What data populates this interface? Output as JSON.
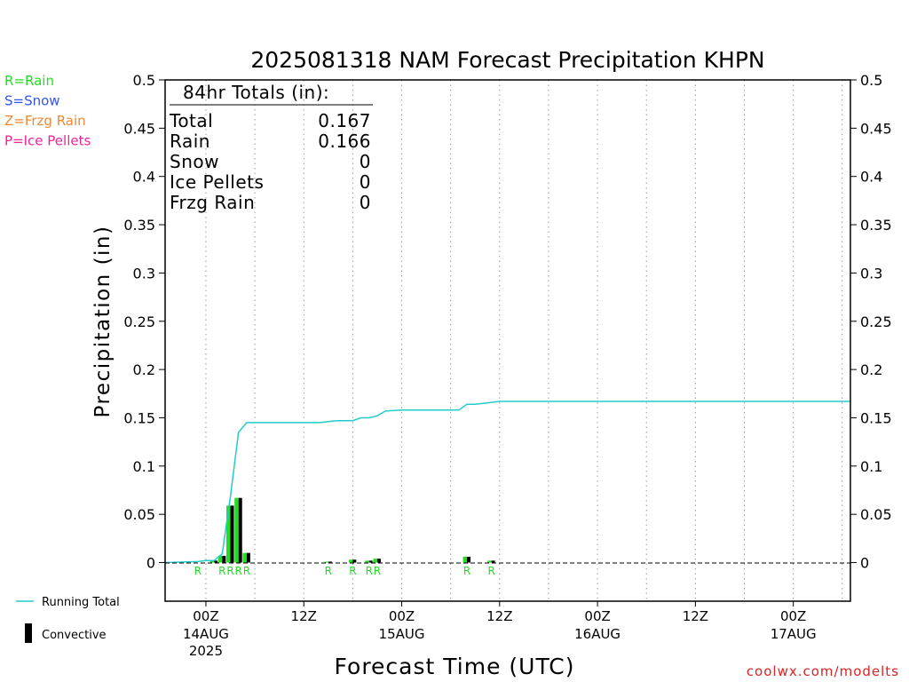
{
  "chart_data": {
    "type": "bar",
    "title": "2025081318 NAM Forecast Precipitation KHPN",
    "xlabel": "Forecast Time (UTC)",
    "ylabel": "Precipitation (in)",
    "ylim": [
      -0.04,
      0.5
    ],
    "xlim_hours_from_14aug00z": [
      -5,
      79
    ],
    "yticks": [
      "0",
      "0.05",
      "0.1",
      "0.15",
      "0.2",
      "0.25",
      "0.3",
      "0.35",
      "0.4",
      "0.45",
      "0.5"
    ],
    "xticks": [
      {
        "label": "00Z",
        "sub": "14AUG",
        "sub2": "2025",
        "hour": 0
      },
      {
        "label": "12Z",
        "sub": "",
        "sub2": "",
        "hour": 12
      },
      {
        "label": "00Z",
        "sub": "15AUG",
        "sub2": "",
        "hour": 24
      },
      {
        "label": "12Z",
        "sub": "",
        "sub2": "",
        "hour": 36
      },
      {
        "label": "00Z",
        "sub": "16AUG",
        "sub2": "",
        "hour": 48
      },
      {
        "label": "12Z",
        "sub": "",
        "sub2": "",
        "hour": 60
      },
      {
        "label": "00Z",
        "sub": "17AUG",
        "sub2": "",
        "hour": 72
      }
    ],
    "grid": "vertical dotted every 6 hours",
    "bars": [
      {
        "hour": 1,
        "value": 0.002
      },
      {
        "hour": 2,
        "value": 0.007
      },
      {
        "hour": 3,
        "value": 0.059
      },
      {
        "hour": 4,
        "value": 0.067
      },
      {
        "hour": 5,
        "value": 0.01
      },
      {
        "hour": 15,
        "value": 0.001
      },
      {
        "hour": 18,
        "value": 0.003
      },
      {
        "hour": 20,
        "value": 0.002
      },
      {
        "hour": 21,
        "value": 0.004
      },
      {
        "hour": 32,
        "value": 0.006
      },
      {
        "hour": 35,
        "value": 0.002
      }
    ],
    "running_total": {
      "name": "Running Total",
      "hours": [
        -5,
        -1,
        0,
        1,
        2,
        3,
        4,
        5,
        8,
        12,
        14,
        15,
        16,
        17,
        18,
        19,
        20,
        21,
        22,
        24,
        27,
        30,
        31,
        32,
        33,
        34,
        35,
        36,
        48,
        60,
        79
      ],
      "values": [
        0,
        0.001,
        0.002,
        0.002,
        0.009,
        0.068,
        0.135,
        0.145,
        0.145,
        0.145,
        0.145,
        0.146,
        0.147,
        0.147,
        0.147,
        0.15,
        0.15,
        0.152,
        0.157,
        0.158,
        0.158,
        0.158,
        0.158,
        0.164,
        0.164,
        0.165,
        0.166,
        0.167,
        0.167,
        0.167,
        0.167
      ]
    },
    "ptype_markers": [
      {
        "hour": -1,
        "text": "R"
      },
      {
        "hour": 2,
        "text": "R"
      },
      {
        "hour": 3,
        "text": "R"
      },
      {
        "hour": 4,
        "text": "R"
      },
      {
        "hour": 5,
        "text": "R"
      },
      {
        "hour": 15,
        "text": "R"
      },
      {
        "hour": 18,
        "text": "R"
      },
      {
        "hour": 20,
        "text": "R"
      },
      {
        "hour": 21,
        "text": "R"
      },
      {
        "hour": 32,
        "text": "R"
      },
      {
        "hour": 35,
        "text": "R"
      }
    ],
    "colors": {
      "rain": "#22dd22",
      "snow": "#3355ee",
      "frzg_rain": "#ee8833",
      "ice_pellets": "#ee2299",
      "running_total": "#22cccc",
      "convective": "#000000",
      "watermark": "#dd2222"
    }
  },
  "totals_box": {
    "heading": "84hr Totals (in):",
    "rows": [
      {
        "label": "Total",
        "value": "0.167"
      },
      {
        "label": "Rain",
        "value": "0.166"
      },
      {
        "label": "Snow",
        "value": "0"
      },
      {
        "label": "Ice Pellets",
        "value": "0"
      },
      {
        "label": "Frzg Rain",
        "value": "0"
      }
    ]
  },
  "ptype_legend": [
    {
      "text": "R=Rain",
      "color": "#22dd22"
    },
    {
      "text": "S=Snow",
      "color": "#3355ee"
    },
    {
      "text": "Z=Frzg Rain",
      "color": "#ee8833"
    },
    {
      "text": "P=Ice Pellets",
      "color": "#ee2299"
    }
  ],
  "bottom_legend": {
    "running_total": "Running Total",
    "convective": "Convective"
  },
  "watermark": "coolwx.com/modelts"
}
